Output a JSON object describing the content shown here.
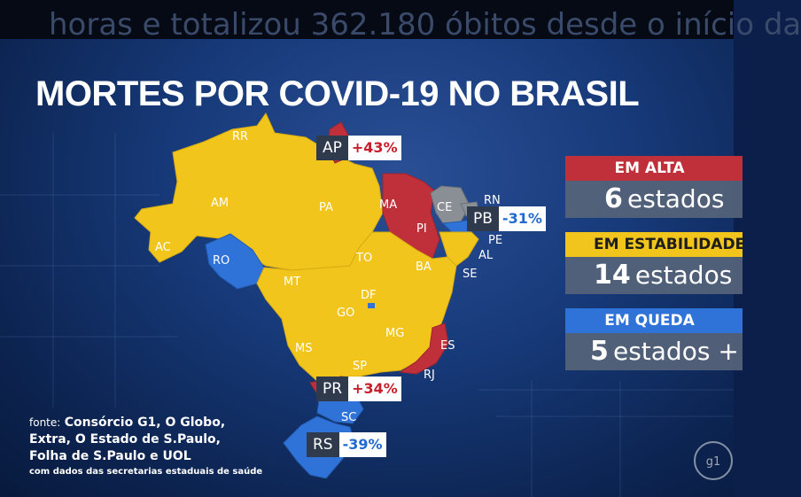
{
  "caption": "horas e totalizou 362.180 óbitos desde o início da",
  "title": "MORTES POR COVID-19 NO BRASIL",
  "colors": {
    "alta": "#c0303a",
    "estabilidade": "#f2c51c",
    "queda": "#2f73d9",
    "sem_dados": "#8a8f96"
  },
  "states": {
    "RR": "RR",
    "AP": "AP",
    "AM": "AM",
    "PA": "PA",
    "MA": "MA",
    "CE": "CE",
    "RN": "RN",
    "PB": "PB",
    "PE": "PE",
    "AL": "AL",
    "SE": "SE",
    "PI": "PI",
    "AC": "AC",
    "RO": "RO",
    "TO": "TO",
    "BA": "BA",
    "MT": "MT",
    "DF": "DF",
    "GO": "GO",
    "MG": "MG",
    "ES": "ES",
    "MS": "MS",
    "SP": "SP",
    "RJ": "RJ",
    "PR": "PR",
    "SC": "SC",
    "RS": "RS"
  },
  "highlights": {
    "ap": {
      "code": "AP",
      "pct": "+43%"
    },
    "pb": {
      "code": "PB",
      "pct": "-31%"
    },
    "pr": {
      "code": "PR",
      "pct": "+34%"
    },
    "rs": {
      "code": "RS",
      "pct": "-39%"
    }
  },
  "legend": {
    "alta": {
      "label": "EM ALTA",
      "num": "6",
      "word": "estados"
    },
    "estabilidade": {
      "label": "EM ESTABILIDADE",
      "num": "14",
      "word": "estados"
    },
    "queda": {
      "label": "EM QUEDA",
      "num": "5",
      "word": "estados +"
    }
  },
  "source": {
    "prefix": "fonte:",
    "line1": "Consórcio G1, O Globo,",
    "line2": "Extra, O Estado de S.Paulo,",
    "line3": "Folha de S.Paulo e UOL",
    "line4": "com dados das secretarias estaduais de saúde"
  },
  "logo": "g1"
}
